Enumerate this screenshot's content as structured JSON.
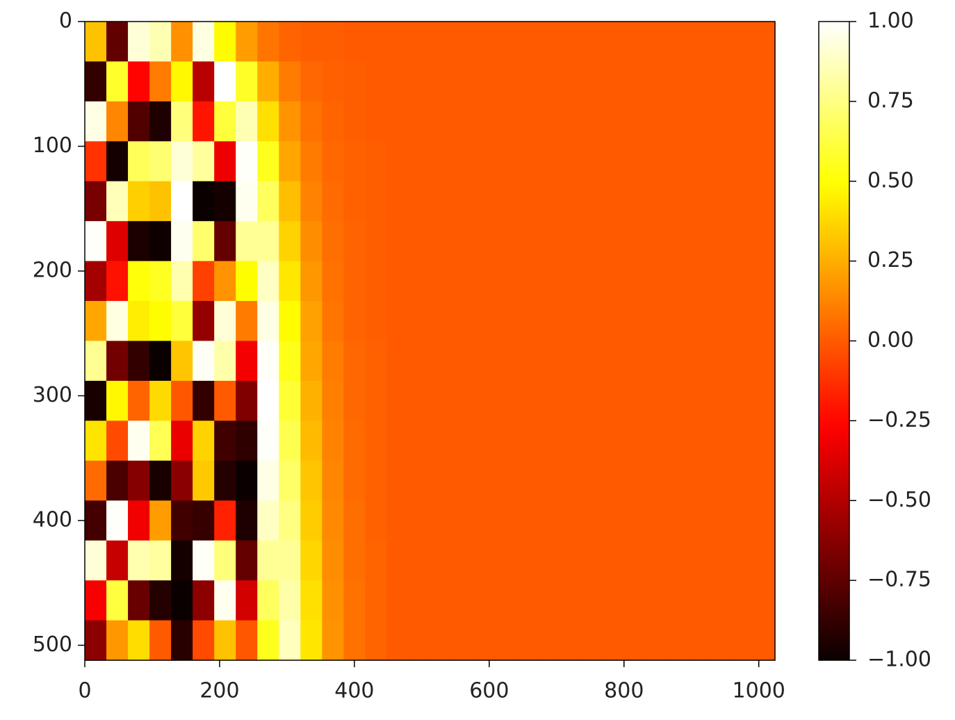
{
  "chart_data": {
    "type": "heatmap",
    "cmap": "hot",
    "xlim": [
      0,
      1024
    ],
    "ylim": [
      512,
      0
    ],
    "xticks": [
      0,
      200,
      400,
      600,
      800,
      1000
    ],
    "yticks": [
      0,
      100,
      200,
      300,
      400,
      500
    ],
    "clim": [
      -1,
      1
    ],
    "cticks": [
      {
        "value": -1,
        "label": "−1.00"
      },
      {
        "value": -0.75,
        "label": "−0.75"
      },
      {
        "value": -0.5,
        "label": "−0.50"
      },
      {
        "value": -0.25,
        "label": "−0.25"
      },
      {
        "value": 0,
        "label": "0.00"
      },
      {
        "value": 0.25,
        "label": "0.25"
      },
      {
        "value": 0.5,
        "label": "0.50"
      },
      {
        "value": 0.75,
        "label": "0.75"
      },
      {
        "value": 1,
        "label": "1.00"
      }
    ],
    "values": [
      [
        0.31,
        -0.74,
        0.92,
        0.85,
        0.16,
        0.94,
        0.48,
        0.2,
        0.08,
        0.03,
        0.01,
        0.01,
        0,
        0,
        0,
        0,
        0,
        0,
        0,
        0,
        0,
        0,
        0,
        0,
        0,
        0,
        0,
        0,
        0,
        0,
        0,
        0
      ],
      [
        -0.88,
        0.58,
        -0.26,
        0.1,
        0.47,
        -0.48,
        1.0,
        0.57,
        0.25,
        0.1,
        0.04,
        0.02,
        0.01,
        0,
        0,
        0,
        0,
        0,
        0,
        0,
        0,
        0,
        0,
        0,
        0,
        0,
        0,
        0,
        0,
        0,
        0,
        0
      ],
      [
        0.95,
        0.13,
        -0.79,
        -0.94,
        0.74,
        -0.21,
        0.61,
        0.85,
        0.4,
        0.17,
        0.07,
        0.03,
        0.01,
        0,
        0,
        0,
        0,
        0,
        0,
        0,
        0,
        0,
        0,
        0,
        0,
        0,
        0,
        0,
        0,
        0,
        0,
        0
      ],
      [
        -0.12,
        -0.97,
        0.67,
        0.72,
        0.92,
        0.8,
        -0.32,
        0.99,
        0.55,
        0.23,
        0.1,
        0.04,
        0.02,
        0.01,
        0,
        0,
        0,
        0,
        0,
        0,
        0,
        0,
        0,
        0,
        0,
        0,
        0,
        0,
        0,
        0,
        0,
        0
      ],
      [
        -0.67,
        0.86,
        0.35,
        0.31,
        1.0,
        -1.0,
        -0.97,
        0.97,
        0.68,
        0.3,
        0.12,
        0.05,
        0.02,
        0.01,
        0,
        0,
        0,
        0,
        0,
        0,
        0,
        0,
        0,
        0,
        0,
        0,
        0,
        0,
        0,
        0,
        0,
        0
      ],
      [
        0.99,
        -0.37,
        -0.95,
        -0.99,
        0.97,
        0.71,
        -0.73,
        0.79,
        0.79,
        0.36,
        0.15,
        0.06,
        0.03,
        0.01,
        0,
        0,
        0,
        0,
        0,
        0,
        0,
        0,
        0,
        0,
        0,
        0,
        0,
        0,
        0,
        0,
        0,
        0
      ],
      [
        -0.54,
        -0.22,
        0.51,
        0.56,
        0.84,
        -0.08,
        0.17,
        0.49,
        0.88,
        0.42,
        0.18,
        0.07,
        0.03,
        0.01,
        0,
        0,
        0,
        0,
        0,
        0,
        0,
        0,
        0,
        0,
        0,
        0,
        0,
        0,
        0,
        0,
        0,
        0
      ],
      [
        0.23,
        0.94,
        0.44,
        0.49,
        0.61,
        -0.59,
        0.92,
        0.1,
        0.95,
        0.48,
        0.21,
        0.08,
        0.03,
        0.01,
        0,
        0,
        0,
        0,
        0,
        0,
        0,
        0,
        0,
        0,
        0,
        0,
        0,
        0,
        0,
        0,
        0,
        0
      ],
      [
        0.78,
        -0.69,
        -0.88,
        -1.0,
        0.32,
        0.98,
        0.83,
        -0.3,
        0.99,
        0.54,
        0.23,
        0.1,
        0.04,
        0.02,
        0,
        0,
        0,
        0,
        0,
        0,
        0,
        0,
        0,
        0,
        0,
        0,
        0,
        0,
        0,
        0,
        0,
        0
      ],
      [
        -0.96,
        0.47,
        0.03,
        0.38,
        -0.01,
        -0.88,
        0.0,
        -0.65,
        1.0,
        0.6,
        0.26,
        0.11,
        0.04,
        0.02,
        0,
        0,
        0,
        0,
        0,
        0,
        0,
        0,
        0,
        0,
        0,
        0,
        0,
        0,
        0,
        0,
        0,
        0
      ],
      [
        0.41,
        -0.05,
        0.97,
        0.66,
        -0.33,
        0.36,
        -0.84,
        -0.89,
        0.99,
        0.65,
        0.29,
        0.12,
        0.05,
        0.02,
        0,
        0,
        0,
        0,
        0,
        0,
        0,
        0,
        0,
        0,
        0,
        0,
        0,
        0,
        0,
        0,
        0,
        0
      ],
      [
        0.05,
        -0.81,
        -0.63,
        -0.96,
        -0.62,
        0.33,
        -0.92,
        -1.0,
        0.95,
        0.7,
        0.32,
        0.13,
        0.05,
        0.02,
        0,
        0,
        0,
        0,
        0,
        0,
        0,
        0,
        0,
        0,
        0,
        0,
        0,
        0,
        0,
        0,
        0,
        0
      ],
      [
        -0.83,
        0.99,
        -0.31,
        0.2,
        -0.84,
        -0.87,
        -0.17,
        -0.94,
        0.88,
        0.75,
        0.34,
        0.14,
        0.06,
        0.02,
        0,
        0,
        0,
        0,
        0,
        0,
        0,
        0,
        0,
        0,
        0,
        0,
        0,
        0,
        0,
        0,
        0,
        0
      ],
      [
        0.92,
        -0.44,
        0.84,
        0.81,
        -0.97,
        0.98,
        0.74,
        -0.73,
        0.79,
        0.79,
        0.37,
        0.15,
        0.06,
        0.03,
        0,
        0,
        0,
        0,
        0,
        0,
        0,
        0,
        0,
        0,
        0,
        0,
        0,
        0,
        0,
        0,
        0,
        0
      ],
      [
        -0.29,
        0.62,
        -0.72,
        -0.92,
        -1.0,
        -0.61,
        0.97,
        -0.4,
        0.68,
        0.83,
        0.4,
        0.16,
        0.07,
        0.03,
        0,
        0,
        0,
        0,
        0,
        0,
        0,
        0,
        0,
        0,
        0,
        0,
        0,
        0,
        0,
        0,
        0,
        0
      ],
      [
        -0.61,
        0.18,
        0.39,
        0.0,
        -0.91,
        -0.05,
        0.31,
        -0.01,
        0.55,
        0.87,
        0.42,
        0.17,
        0.07,
        0.03,
        0,
        0,
        0,
        0,
        0,
        0,
        0,
        0,
        0,
        0,
        0,
        0,
        0,
        0,
        0,
        0,
        0,
        0
      ]
    ]
  }
}
